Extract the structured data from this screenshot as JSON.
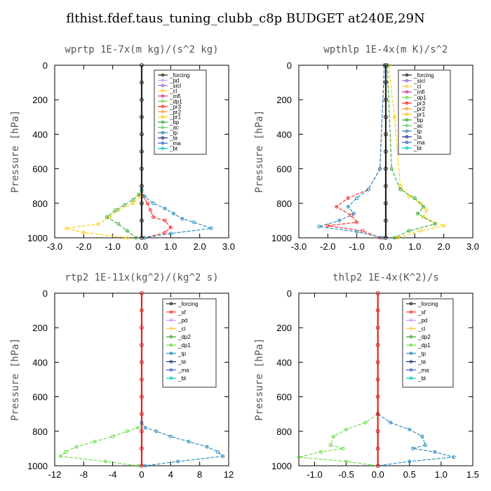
{
  "title": "flthist.fdef.taus_tuning_clubb_c8p  BUDGET at240E,29N",
  "chart_data": [
    {
      "type": "line",
      "title": "wprtp  1E-7x(m kg)/(s^2 kg)",
      "ylabel": "Pressure [hPa]",
      "xlim": [
        -3.0,
        3.0
      ],
      "ylim": [
        1000,
        0
      ],
      "xticks": [
        "-3.0",
        "-2.0",
        "-1.0",
        "0.0",
        "1.0",
        "2.0",
        "3.0"
      ],
      "yticks": [
        "0",
        "200",
        "400",
        "600",
        "800",
        "1000"
      ],
      "legend": [
        "_forcing",
        "_pd",
        "_sicl",
        "_cl",
        "_mfl",
        "_dp1",
        "_pr3",
        "_pr2",
        "_pr1",
        "_bp",
        "_ac",
        "_tp",
        "_ta",
        "_ma",
        "_bt"
      ],
      "series": [
        {
          "name": "_pr1",
          "color": "#ffcc00",
          "x": [
            0,
            -0.05,
            -0.3,
            -0.8,
            -1.1,
            -1.5,
            -2.6,
            -2.0,
            -0.5
          ],
          "y": [
            730,
            760,
            800,
            840,
            880,
            920,
            945,
            970,
            1000
          ]
        },
        {
          "name": "_bp",
          "color": "#33aa33",
          "x": [
            0,
            -0.1,
            -0.3,
            -0.6,
            -0.9,
            -1.2,
            -0.8,
            -0.5,
            -0.2
          ],
          "y": [
            720,
            750,
            780,
            810,
            840,
            880,
            920,
            960,
            1000
          ]
        },
        {
          "name": "_pr3",
          "color": "#ff2222",
          "x": [
            0,
            0.05,
            0.2,
            0.3,
            0.4,
            0.8,
            1.0,
            0.8,
            0.1
          ],
          "y": [
            720,
            760,
            800,
            840,
            880,
            900,
            940,
            970,
            1000
          ]
        },
        {
          "name": "_tp",
          "color": "#2288bb",
          "x": [
            0,
            0.1,
            0.4,
            0.8,
            1.1,
            1.4,
            1.8,
            2.4,
            1.0,
            0.1
          ],
          "y": [
            720,
            760,
            800,
            830,
            860,
            890,
            910,
            945,
            975,
            1000
          ]
        },
        {
          "name": "_forcing",
          "color": "#222222",
          "x": [
            0,
            0,
            0,
            0,
            0,
            0,
            0,
            0,
            0,
            0,
            0
          ],
          "y": [
            0,
            100,
            200,
            300,
            400,
            500,
            600,
            700,
            800,
            900,
            1000
          ]
        }
      ]
    },
    {
      "type": "line",
      "title": "wpthlp  1E-4x(m K)/s^2",
      "ylabel": "Pressure [hPa]",
      "xlim": [
        -3.0,
        3.0
      ],
      "ylim": [
        1000,
        0
      ],
      "xticks": [
        "-3.0",
        "-2.0",
        "-1.0",
        "0.0",
        "1.0",
        "2.0",
        "3.0"
      ],
      "yticks": [
        "0",
        "200",
        "400",
        "600",
        "800",
        "1000"
      ],
      "legend": [
        "_forcing",
        "_sicl",
        "_cl",
        "_mfl",
        "_dp1",
        "_pr3",
        "_pr2",
        "_pr1",
        "_bp",
        "_ac",
        "_tp",
        "_ta",
        "_ma",
        "_bt"
      ],
      "series": [
        {
          "name": "_pr1",
          "color": "#ffcc00",
          "x": [
            0.1,
            0.3,
            0.5,
            0.8,
            1.2,
            1.4,
            1.3,
            2.0,
            1.2,
            0.4
          ],
          "y": [
            0,
            300,
            700,
            760,
            800,
            840,
            880,
            930,
            960,
            1000
          ]
        },
        {
          "name": "_bp",
          "color": "#33aa33",
          "x": [
            0.05,
            0.2,
            0.5,
            1.0,
            1.3,
            1.1,
            1.7,
            0.8,
            0.3
          ],
          "y": [
            0,
            600,
            720,
            770,
            820,
            860,
            920,
            960,
            1000
          ]
        },
        {
          "name": "_pr3",
          "color": "#ff2222",
          "x": [
            -0.05,
            -0.2,
            -0.6,
            -1.3,
            -1.7,
            -1.2,
            -1.0,
            -2.0,
            -0.8,
            -0.2
          ],
          "y": [
            0,
            600,
            720,
            770,
            820,
            870,
            910,
            930,
            960,
            1000
          ]
        },
        {
          "name": "_tp",
          "color": "#2288bb",
          "x": [
            -0.05,
            -0.2,
            -0.6,
            -1.0,
            -1.3,
            -1.1,
            -1.6,
            -2.3,
            -1.0,
            -0.1
          ],
          "y": [
            0,
            600,
            720,
            770,
            820,
            860,
            900,
            935,
            965,
            1000
          ]
        },
        {
          "name": "_forcing",
          "color": "#222222",
          "x": [
            0,
            0,
            0,
            0,
            0,
            0,
            0,
            0,
            0,
            0,
            0
          ],
          "y": [
            0,
            100,
            200,
            300,
            400,
            500,
            600,
            700,
            800,
            900,
            1000
          ]
        }
      ]
    },
    {
      "type": "line",
      "title": "rtp2  1E-11x(kg^2)/(kg^2 s)",
      "ylabel": "Pressure [hPa]",
      "xlim": [
        -12,
        12
      ],
      "ylim": [
        1000,
        0
      ],
      "xticks": [
        "-12",
        "-8",
        "-4",
        "0",
        "4",
        "8",
        "12"
      ],
      "yticks": [
        "0",
        "200",
        "400",
        "600",
        "800",
        "1000"
      ],
      "legend": [
        "_forcing",
        "_sf",
        "_pd",
        "_cl",
        "_dp2",
        "_dp1",
        "_tp",
        "_ta",
        "_ma",
        "_bt"
      ],
      "series": [
        {
          "name": "_dp1",
          "color": "#66dd44",
          "x": [
            0,
            -0.5,
            -2.0,
            -4.0,
            -6.5,
            -9.0,
            -10.5,
            -11.2,
            -5.0,
            -0.5
          ],
          "y": [
            750,
            780,
            800,
            830,
            860,
            890,
            920,
            945,
            975,
            1000
          ]
        },
        {
          "name": "_tp",
          "color": "#2288bb",
          "x": [
            0,
            0.5,
            2.0,
            4.0,
            6.5,
            9.0,
            10.5,
            11.2,
            5.0,
            0.5
          ],
          "y": [
            750,
            780,
            800,
            830,
            860,
            890,
            920,
            945,
            975,
            1000
          ]
        },
        {
          "name": "_forcing",
          "color": "#dd2222",
          "x": [
            0,
            0,
            0,
            0,
            0,
            0,
            0,
            0,
            0,
            0,
            0
          ],
          "y": [
            0,
            100,
            200,
            300,
            400,
            500,
            600,
            700,
            800,
            900,
            1000
          ]
        }
      ]
    },
    {
      "type": "line",
      "title": "thlp2  1E-4x(K^2)/s",
      "ylabel": "Pressure [hPa]",
      "xlim": [
        -1.25,
        1.5
      ],
      "ylim": [
        1000,
        0
      ],
      "xticks": [
        "-1.0",
        "-0.5",
        "0.0",
        "0.5",
        "1.0",
        "1.5"
      ],
      "yticks": [
        "0",
        "200",
        "400",
        "600",
        "800",
        "1000"
      ],
      "legend": [
        "_forcing",
        "_sf",
        "_pd",
        "_cl",
        "_dp2",
        "_dp1",
        "_tp",
        "_ta",
        "_ma",
        "_bt"
      ],
      "series": [
        {
          "name": "_dp1",
          "color": "#66dd44",
          "x": [
            0,
            -0.2,
            -0.5,
            -0.7,
            -0.75,
            -0.55,
            -0.9,
            -1.25,
            -0.5,
            0
          ],
          "y": [
            700,
            750,
            790,
            830,
            880,
            900,
            920,
            950,
            975,
            1000
          ]
        },
        {
          "name": "_tp",
          "color": "#2288bb",
          "x": [
            0,
            0.2,
            0.5,
            0.7,
            0.75,
            0.55,
            0.9,
            1.2,
            0.5,
            0
          ],
          "y": [
            700,
            750,
            790,
            830,
            880,
            900,
            920,
            950,
            975,
            1000
          ]
        },
        {
          "name": "_forcing",
          "color": "#dd2222",
          "x": [
            0,
            0,
            0,
            0,
            0,
            0,
            0,
            0,
            0,
            0,
            0
          ],
          "y": [
            0,
            100,
            200,
            300,
            400,
            500,
            600,
            700,
            800,
            900,
            1000
          ]
        }
      ]
    }
  ]
}
